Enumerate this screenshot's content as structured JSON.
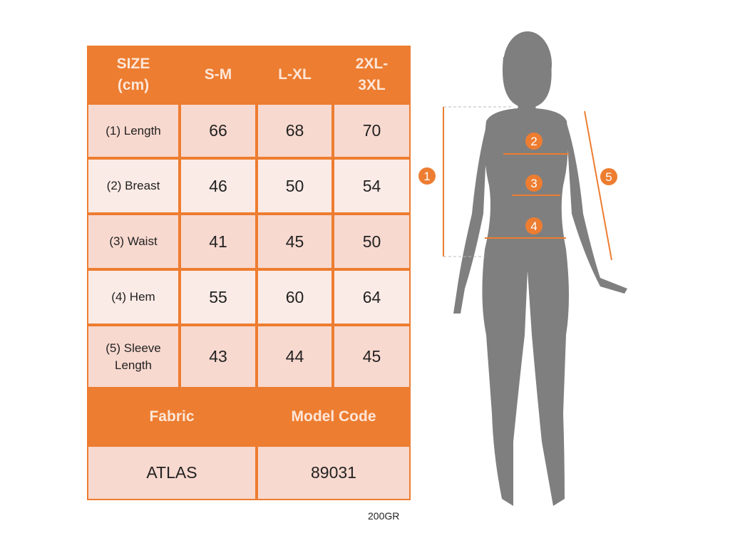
{
  "table": {
    "header": [
      "SIZE\n(cm)",
      "S-M",
      "L-XL",
      "2XL-\n3XL"
    ],
    "rows": [
      {
        "label": "(1) Length",
        "values": [
          "66",
          "68",
          "70"
        ]
      },
      {
        "label": "(2) Breast",
        "values": [
          "46",
          "50",
          "54"
        ]
      },
      {
        "label": "(3) Waist",
        "values": [
          "41",
          "45",
          "50"
        ]
      },
      {
        "label": "(4) Hem",
        "values": [
          "55",
          "60",
          "64"
        ]
      },
      {
        "label": "(5) Sleeve\nLength",
        "values": [
          "43",
          "44",
          "45"
        ]
      }
    ],
    "footer_header": [
      "Fabric",
      "Model Code"
    ],
    "footer_values": [
      "ATLAS",
      "89031"
    ]
  },
  "note": "200GR",
  "figure": {
    "markers": [
      "1",
      "2",
      "3",
      "4",
      "5"
    ]
  },
  "colors": {
    "accent": "#ED7D31",
    "row_a": "#F8D9CF",
    "row_b": "#FBEBE6",
    "silhouette": "#7F7F7F"
  }
}
